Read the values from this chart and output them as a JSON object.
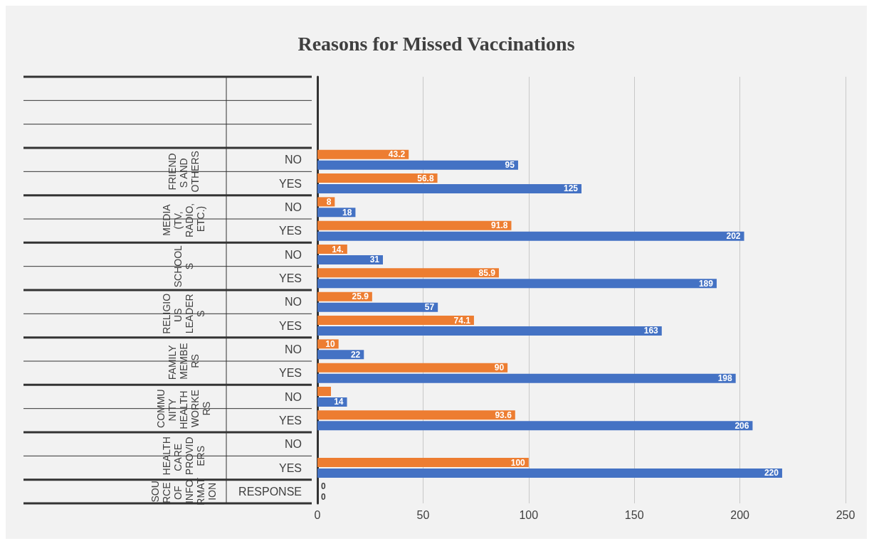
{
  "chart_data": {
    "type": "bar",
    "orientation": "horizontal",
    "title": "Reasons for Missed Vaccinations",
    "categories": [
      null,
      null,
      null,
      "NO",
      "YES",
      "NO",
      "YES",
      "NO",
      "YES",
      "NO",
      "YES",
      "NO",
      "YES",
      "NO",
      "YES",
      "NO",
      "YES",
      "RESPONSE"
    ],
    "series": [
      {
        "color": "#ed7d31",
        "values": [
          null,
          null,
          null,
          43.2,
          56.8,
          8.2,
          91.8,
          14.1,
          85.9,
          25.9,
          74.1,
          10,
          90,
          6.4,
          93.6,
          0,
          100,
          0
        ],
        "value_labels": [
          null,
          null,
          null,
          "43.2",
          "56.8",
          "8",
          "91.8",
          "14.",
          "85.9",
          "25.9",
          "74.1",
          "10",
          "90",
          null,
          "93.6",
          null,
          "100",
          "0"
        ]
      },
      {
        "color": "#4472c4",
        "values": [
          null,
          null,
          null,
          95,
          125,
          18,
          202,
          31,
          189,
          57,
          163,
          22,
          198,
          14,
          206,
          0,
          220,
          0
        ],
        "value_labels": [
          null,
          null,
          null,
          "95",
          "125",
          "18",
          "202",
          "31",
          "189",
          "57",
          "163",
          "22",
          "198",
          "14",
          "206",
          null,
          "220",
          "0"
        ]
      }
    ],
    "annotations": [
      "FRIENDS AND OTHERS",
      "MEDIA (TV, RADIO, ETC.)",
      "SCHOOLS",
      "RELIGIOUS LEADERS",
      "FAMILY MEMBERS",
      "COMMUNITY HEALTH WORKERS",
      "HEALTHCARE PROVIDERS",
      "SOURCE OF INFORMATION"
    ],
    "xlim": [
      0,
      250
    ],
    "xticks": [
      0,
      50,
      100,
      150,
      200,
      250
    ],
    "grid": "x"
  }
}
